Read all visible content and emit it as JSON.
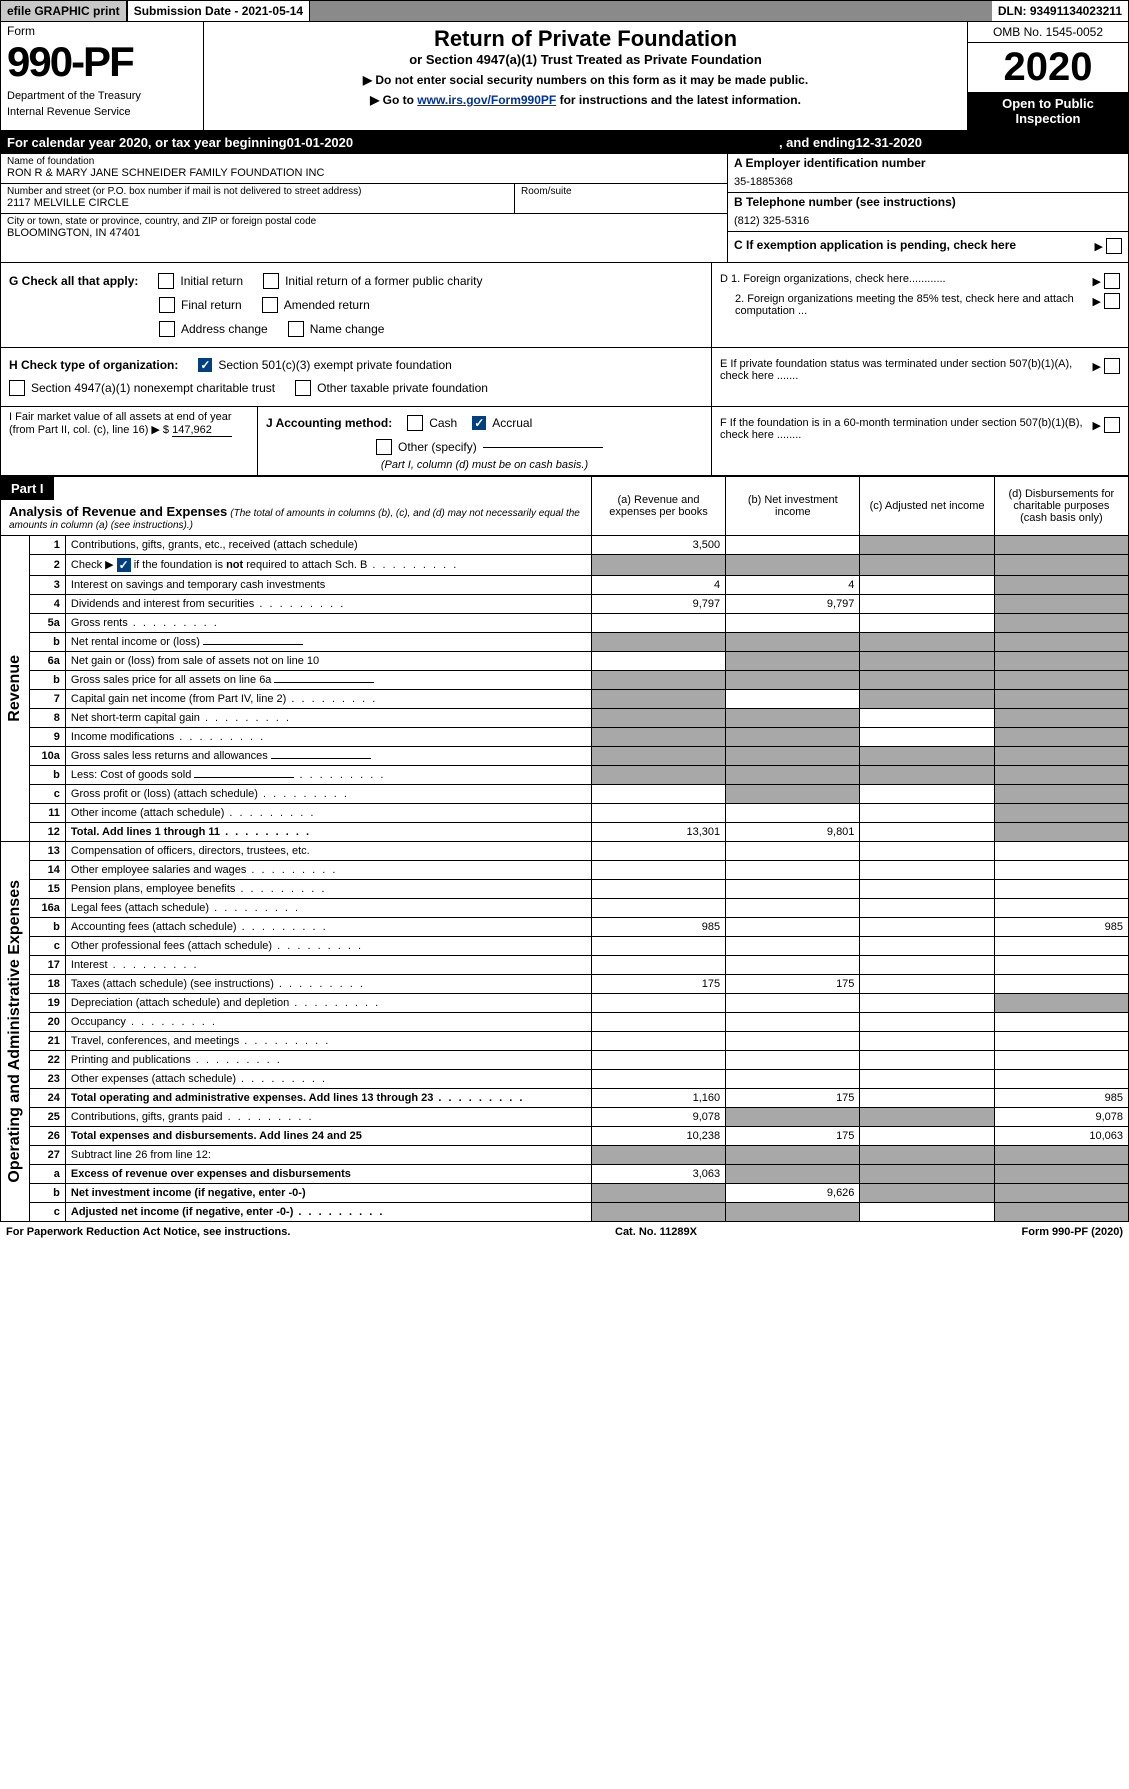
{
  "topbar": {
    "efile": "efile GRAPHIC print",
    "submission_label": "Submission Date - 2021-05-14",
    "dln": "DLN: 93491134023211"
  },
  "header": {
    "form_label": "Form",
    "form_number": "990-PF",
    "dept": "Department of the Treasury",
    "irs": "Internal Revenue Service",
    "title": "Return of Private Foundation",
    "subtitle": "or Section 4947(a)(1) Trust Treated as Private Foundation",
    "instr1": "▶ Do not enter social security numbers on this form as it may be made public.",
    "instr2_prefix": "▶ Go to ",
    "instr2_link": "www.irs.gov/Form990PF",
    "instr2_suffix": " for instructions and the latest information.",
    "omb": "OMB No. 1545-0052",
    "year": "2020",
    "open_public": "Open to Public Inspection"
  },
  "cal_year": {
    "prefix": "For calendar year 2020, or tax year beginning ",
    "start": "01-01-2020",
    "middle": ", and ending ",
    "end": "12-31-2020"
  },
  "entity": {
    "name_label": "Name of foundation",
    "name": "RON R & MARY JANE SCHNEIDER FAMILY FOUNDATION INC",
    "street_label": "Number and street (or P.O. box number if mail is not delivered to street address)",
    "street": "2117 MELVILLE CIRCLE",
    "room_label": "Room/suite",
    "city_label": "City or town, state or province, country, and ZIP or foreign postal code",
    "city": "BLOOMINGTON, IN  47401",
    "ein_label": "A Employer identification number",
    "ein": "35-1885368",
    "phone_label": "B Telephone number (see instructions)",
    "phone": "(812) 325-5316",
    "pending_label": "C If exemption application is pending, check here"
  },
  "checks": {
    "g_label": "G Check all that apply:",
    "initial": "Initial return",
    "initial_former": "Initial return of a former public charity",
    "final": "Final return",
    "amended": "Amended return",
    "address": "Address change",
    "name_change": "Name change",
    "h_label": "H Check type of organization:",
    "h_501c3": "Section 501(c)(3) exempt private foundation",
    "h_4947": "Section 4947(a)(1) nonexempt charitable trust",
    "h_other": "Other taxable private foundation",
    "d1": "D 1. Foreign organizations, check here............",
    "d2": "2. Foreign organizations meeting the 85% test, check here and attach computation ...",
    "e": "E  If private foundation status was terminated under section 507(b)(1)(A), check here .......",
    "f": "F  If the foundation is in a 60-month termination under section 507(b)(1)(B), check here ........"
  },
  "ij": {
    "i_label": "I Fair market value of all assets at end of year (from Part II, col. (c), line 16) ▶ $",
    "i_value": "147,962",
    "j_label": "J Accounting method:",
    "j_cash": "Cash",
    "j_accrual": "Accrual",
    "j_other": "Other (specify)",
    "j_note": "(Part I, column (d) must be on cash basis.)"
  },
  "part1": {
    "label": "Part I",
    "title": "Analysis of Revenue and Expenses",
    "title_note": "(The total of amounts in columns (b), (c), and (d) may not necessarily equal the amounts in column (a) (see instructions).)",
    "col_a": "(a)   Revenue and expenses per books",
    "col_b": "(b)  Net investment income",
    "col_c": "(c)  Adjusted net income",
    "col_d": "(d)  Disbursements for charitable purposes (cash basis only)"
  },
  "sections": {
    "revenue": "Revenue",
    "expenses": "Operating and Administrative Expenses"
  },
  "rows": [
    {
      "n": "1",
      "d": "Contributions, gifts, grants, etc., received (attach schedule)",
      "a": "3,500",
      "b": "",
      "c": "shaded",
      "dv": "shaded"
    },
    {
      "n": "2",
      "d": "Check ▶ ☑ if the foundation is not required to attach Sch. B",
      "a": "shaded",
      "b": "shaded",
      "c": "shaded",
      "dv": "shaded",
      "dots": true
    },
    {
      "n": "3",
      "d": "Interest on savings and temporary cash investments",
      "a": "4",
      "b": "4",
      "c": "",
      "dv": "shaded"
    },
    {
      "n": "4",
      "d": "Dividends and interest from securities",
      "a": "9,797",
      "b": "9,797",
      "c": "",
      "dv": "shaded",
      "dots": true
    },
    {
      "n": "5a",
      "d": "Gross rents",
      "a": "",
      "b": "",
      "c": "",
      "dv": "shaded",
      "dots": true
    },
    {
      "n": "b",
      "d": "Net rental income or (loss)",
      "a": "shaded",
      "b": "shaded",
      "c": "shaded",
      "dv": "shaded",
      "inline": true
    },
    {
      "n": "6a",
      "d": "Net gain or (loss) from sale of assets not on line 10",
      "a": "",
      "b": "shaded",
      "c": "shaded",
      "dv": "shaded"
    },
    {
      "n": "b",
      "d": "Gross sales price for all assets on line 6a",
      "a": "shaded",
      "b": "shaded",
      "c": "shaded",
      "dv": "shaded",
      "inline": true
    },
    {
      "n": "7",
      "d": "Capital gain net income (from Part IV, line 2)",
      "a": "shaded",
      "b": "",
      "c": "shaded",
      "dv": "shaded",
      "dots": true
    },
    {
      "n": "8",
      "d": "Net short-term capital gain",
      "a": "shaded",
      "b": "shaded",
      "c": "",
      "dv": "shaded",
      "dots": true
    },
    {
      "n": "9",
      "d": "Income modifications",
      "a": "shaded",
      "b": "shaded",
      "c": "",
      "dv": "shaded",
      "dots": true
    },
    {
      "n": "10a",
      "d": "Gross sales less returns and allowances",
      "a": "shaded",
      "b": "shaded",
      "c": "shaded",
      "dv": "shaded",
      "inline": true
    },
    {
      "n": "b",
      "d": "Less: Cost of goods sold",
      "a": "shaded",
      "b": "shaded",
      "c": "shaded",
      "dv": "shaded",
      "inline": true,
      "dots": true
    },
    {
      "n": "c",
      "d": "Gross profit or (loss) (attach schedule)",
      "a": "",
      "b": "shaded",
      "c": "",
      "dv": "shaded",
      "dots": true
    },
    {
      "n": "11",
      "d": "Other income (attach schedule)",
      "a": "",
      "b": "",
      "c": "",
      "dv": "shaded",
      "dots": true
    },
    {
      "n": "12",
      "d": "Total. Add lines 1 through 11",
      "a": "13,301",
      "b": "9,801",
      "c": "",
      "dv": "shaded",
      "bold": true,
      "dots": true
    },
    {
      "n": "13",
      "d": "Compensation of officers, directors, trustees, etc.",
      "a": "",
      "b": "",
      "c": "",
      "dv": ""
    },
    {
      "n": "14",
      "d": "Other employee salaries and wages",
      "a": "",
      "b": "",
      "c": "",
      "dv": "",
      "dots": true
    },
    {
      "n": "15",
      "d": "Pension plans, employee benefits",
      "a": "",
      "b": "",
      "c": "",
      "dv": "",
      "dots": true
    },
    {
      "n": "16a",
      "d": "Legal fees (attach schedule)",
      "a": "",
      "b": "",
      "c": "",
      "dv": "",
      "dots": true
    },
    {
      "n": "b",
      "d": "Accounting fees (attach schedule)",
      "a": "985",
      "b": "",
      "c": "",
      "dv": "985",
      "dots": true
    },
    {
      "n": "c",
      "d": "Other professional fees (attach schedule)",
      "a": "",
      "b": "",
      "c": "",
      "dv": "",
      "dots": true
    },
    {
      "n": "17",
      "d": "Interest",
      "a": "",
      "b": "",
      "c": "",
      "dv": "",
      "dots": true
    },
    {
      "n": "18",
      "d": "Taxes (attach schedule) (see instructions)",
      "a": "175",
      "b": "175",
      "c": "",
      "dv": "",
      "dots": true
    },
    {
      "n": "19",
      "d": "Depreciation (attach schedule) and depletion",
      "a": "",
      "b": "",
      "c": "",
      "dv": "shaded",
      "dots": true
    },
    {
      "n": "20",
      "d": "Occupancy",
      "a": "",
      "b": "",
      "c": "",
      "dv": "",
      "dots": true
    },
    {
      "n": "21",
      "d": "Travel, conferences, and meetings",
      "a": "",
      "b": "",
      "c": "",
      "dv": "",
      "dots": true
    },
    {
      "n": "22",
      "d": "Printing and publications",
      "a": "",
      "b": "",
      "c": "",
      "dv": "",
      "dots": true
    },
    {
      "n": "23",
      "d": "Other expenses (attach schedule)",
      "a": "",
      "b": "",
      "c": "",
      "dv": "",
      "dots": true
    },
    {
      "n": "24",
      "d": "Total operating and administrative expenses. Add lines 13 through 23",
      "a": "1,160",
      "b": "175",
      "c": "",
      "dv": "985",
      "bold": true,
      "dots": true
    },
    {
      "n": "25",
      "d": "Contributions, gifts, grants paid",
      "a": "9,078",
      "b": "shaded",
      "c": "shaded",
      "dv": "9,078",
      "dots": true
    },
    {
      "n": "26",
      "d": "Total expenses and disbursements. Add lines 24 and 25",
      "a": "10,238",
      "b": "175",
      "c": "",
      "dv": "10,063",
      "bold": true
    },
    {
      "n": "27",
      "d": "Subtract line 26 from line 12:",
      "a": "shaded",
      "b": "shaded",
      "c": "shaded",
      "dv": "shaded"
    },
    {
      "n": "a",
      "d": "Excess of revenue over expenses and disbursements",
      "a": "3,063",
      "b": "shaded",
      "c": "shaded",
      "dv": "shaded",
      "bold": true
    },
    {
      "n": "b",
      "d": "Net investment income (if negative, enter -0-)",
      "a": "shaded",
      "b": "9,626",
      "c": "shaded",
      "dv": "shaded",
      "bold": true
    },
    {
      "n": "c",
      "d": "Adjusted net income (if negative, enter -0-)",
      "a": "shaded",
      "b": "shaded",
      "c": "",
      "dv": "shaded",
      "bold": true,
      "dots": true
    }
  ],
  "footer": {
    "paperwork": "For Paperwork Reduction Act Notice, see instructions.",
    "catno": "Cat. No. 11289X",
    "formref": "Form 990-PF (2020)"
  }
}
